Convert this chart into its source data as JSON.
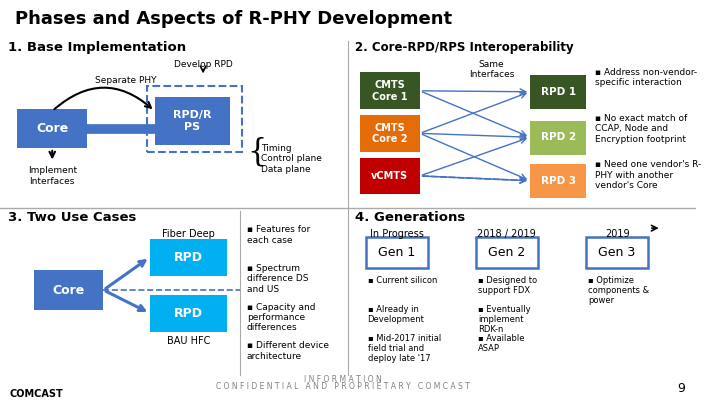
{
  "title": "Phases and Aspects of R-PHY Development",
  "bg_color": "#ffffff",
  "title_color": "#000000",
  "section1_title": "1. Base Implementation",
  "section2_title": "2. Core-RPD/RPS Interoperability",
  "section3_title": "3. Two Use Cases",
  "section4_title": "4. Generations",
  "core_color": "#4472C4",
  "rpd_color": "#4472C4",
  "rpdps_color": "#4472C4",
  "cyan_color": "#00B0F0",
  "cmts1_color": "#375623",
  "cmts2_color": "#E36C09",
  "vcmts_color": "#C00000",
  "rpd1_color": "#375623",
  "rpd2_color": "#9BBB59",
  "rpd3_color": "#F79646",
  "arrow_color": "#4472C4",
  "gen_border_color": "#4472C4",
  "footer_text": "C O N F I D E N T I A L   A N D   P R O P R I E T A R Y   C O M C A S T",
  "footer_text2": "I N F O R M A T I O N",
  "page_num": "9",
  "confidential_color": "#808080"
}
